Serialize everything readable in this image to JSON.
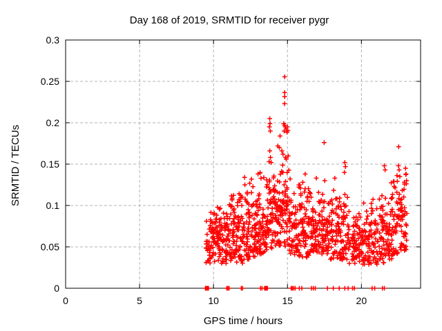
{
  "window": {
    "background": "#ffffff"
  },
  "chart_data": {
    "type": "scatter",
    "title": "Day 168 of 2019, SRMTID for receiver pygr",
    "xlabel": "GPS time / hours",
    "ylabel": "SRMTID / TECUs",
    "xlim": [
      0,
      24
    ],
    "ylim": [
      0,
      0.3
    ],
    "xticks": [
      0,
      5,
      10,
      15,
      20
    ],
    "xtick_labels": [
      "0",
      "5",
      "10",
      "15",
      "20"
    ],
    "yticks": [
      0,
      0.05,
      0.1,
      0.15,
      0.2,
      0.25,
      0.3
    ],
    "ytick_labels": [
      "0",
      "0.05",
      "0.1",
      "0.15",
      "0.2",
      "0.25",
      "0.3"
    ],
    "grid": true,
    "grid_style": "dashed",
    "legend": "none",
    "marker": "plus",
    "marker_color": "#ff0000",
    "grid_color": "#b0b0b0",
    "frame_color": "#000000",
    "series_name": "SRMTID",
    "seed": 7,
    "notable_points": [
      [
        14.81,
        0.2555
      ],
      [
        14.81,
        0.2365
      ],
      [
        14.81,
        0.2315
      ],
      [
        14.8,
        0.223
      ],
      [
        14.75,
        0.199
      ],
      [
        14.8,
        0.197
      ],
      [
        14.85,
        0.195
      ],
      [
        14.9,
        0.1925
      ],
      [
        14.78,
        0.19
      ],
      [
        14.97,
        0.1885
      ],
      [
        15.03,
        0.1905
      ],
      [
        15.0,
        0.195
      ],
      [
        14.5,
        0.184
      ],
      [
        14.35,
        0.172
      ],
      [
        14.45,
        0.17
      ],
      [
        14.62,
        0.166
      ],
      [
        14.7,
        0.162
      ],
      [
        14.86,
        0.158
      ],
      [
        14.92,
        0.156
      ],
      [
        15.05,
        0.16
      ],
      [
        13.78,
        0.195
      ],
      [
        13.8,
        0.205
      ],
      [
        13.82,
        0.199
      ],
      [
        13.84,
        0.19
      ],
      [
        13.8,
        0.166
      ],
      [
        13.85,
        0.158
      ],
      [
        13.76,
        0.153
      ],
      [
        13.9,
        0.152
      ],
      [
        12.1,
        0.134
      ],
      [
        12.12,
        0.125
      ],
      [
        16.2,
        0.138
      ],
      [
        16.95,
        0.133
      ],
      [
        17.48,
        0.176
      ],
      [
        17.52,
        0.13
      ],
      [
        18.2,
        0.133
      ],
      [
        18.88,
        0.152
      ],
      [
        18.92,
        0.147
      ],
      [
        18.85,
        0.14
      ],
      [
        21.55,
        0.148
      ],
      [
        21.6,
        0.143
      ],
      [
        22.52,
        0.171
      ],
      [
        22.5,
        0.148
      ],
      [
        22.55,
        0.143
      ],
      [
        22.6,
        0.135
      ],
      [
        22.98,
        0.145
      ],
      [
        23.02,
        0.138
      ],
      [
        23.05,
        0.13
      ],
      [
        22.9,
        0.128
      ]
    ],
    "zero_marks_x": [
      9.45,
      9.48,
      9.52,
      9.55,
      9.58,
      9.62,
      9.66,
      10.9,
      10.97,
      11.05,
      11.88,
      11.96,
      13.18,
      13.28,
      13.45,
      13.5,
      13.54,
      13.58,
      13.65,
      15.25,
      15.33,
      15.42,
      15.52,
      15.8,
      15.97,
      16.62,
      16.75,
      16.88,
      17.7,
      18.1,
      18.5,
      18.88,
      19.1,
      19.4,
      19.52,
      20.72,
      20.9,
      21.42,
      21.55
    ],
    "density_strips": [
      {
        "x0": 9.5,
        "x1": 10.0,
        "n": 46,
        "ymin": 0.03,
        "ymax": 0.098,
        "peak": 0.055
      },
      {
        "x0": 10.0,
        "x1": 10.5,
        "n": 52,
        "ymin": 0.03,
        "ymax": 0.105,
        "peak": 0.06
      },
      {
        "x0": 10.5,
        "x1": 11.0,
        "n": 52,
        "ymin": 0.03,
        "ymax": 0.11,
        "peak": 0.06
      },
      {
        "x0": 11.0,
        "x1": 11.5,
        "n": 52,
        "ymin": 0.032,
        "ymax": 0.115,
        "peak": 0.063
      },
      {
        "x0": 11.5,
        "x1": 12.0,
        "n": 52,
        "ymin": 0.03,
        "ymax": 0.125,
        "peak": 0.065
      },
      {
        "x0": 12.0,
        "x1": 12.5,
        "n": 52,
        "ymin": 0.035,
        "ymax": 0.132,
        "peak": 0.068
      },
      {
        "x0": 12.5,
        "x1": 13.0,
        "n": 52,
        "ymin": 0.038,
        "ymax": 0.14,
        "peak": 0.072
      },
      {
        "x0": 13.0,
        "x1": 13.5,
        "n": 52,
        "ymin": 0.04,
        "ymax": 0.152,
        "peak": 0.078
      },
      {
        "x0": 13.5,
        "x1": 14.0,
        "n": 55,
        "ymin": 0.045,
        "ymax": 0.15,
        "peak": 0.085
      },
      {
        "x0": 14.0,
        "x1": 14.5,
        "n": 55,
        "ymin": 0.05,
        "ymax": 0.158,
        "peak": 0.09
      },
      {
        "x0": 14.5,
        "x1": 15.1,
        "n": 62,
        "ymin": 0.05,
        "ymax": 0.15,
        "peak": 0.098
      },
      {
        "x0": 15.1,
        "x1": 15.6,
        "n": 46,
        "ymin": 0.04,
        "ymax": 0.15,
        "peak": 0.08
      },
      {
        "x0": 15.6,
        "x1": 16.1,
        "n": 46,
        "ymin": 0.035,
        "ymax": 0.14,
        "peak": 0.072
      },
      {
        "x0": 16.1,
        "x1": 16.6,
        "n": 46,
        "ymin": 0.035,
        "ymax": 0.132,
        "peak": 0.07
      },
      {
        "x0": 16.6,
        "x1": 17.1,
        "n": 46,
        "ymin": 0.038,
        "ymax": 0.128,
        "peak": 0.07
      },
      {
        "x0": 17.1,
        "x1": 17.6,
        "n": 46,
        "ymin": 0.04,
        "ymax": 0.135,
        "peak": 0.074
      },
      {
        "x0": 17.6,
        "x1": 18.1,
        "n": 46,
        "ymin": 0.035,
        "ymax": 0.13,
        "peak": 0.07
      },
      {
        "x0": 18.1,
        "x1": 18.6,
        "n": 44,
        "ymin": 0.035,
        "ymax": 0.132,
        "peak": 0.07
      },
      {
        "x0": 18.6,
        "x1": 19.1,
        "n": 42,
        "ymin": 0.033,
        "ymax": 0.128,
        "peak": 0.066
      },
      {
        "x0": 19.1,
        "x1": 19.6,
        "n": 40,
        "ymin": 0.03,
        "ymax": 0.1,
        "peak": 0.058
      },
      {
        "x0": 19.6,
        "x1": 20.1,
        "n": 40,
        "ymin": 0.03,
        "ymax": 0.105,
        "peak": 0.058
      },
      {
        "x0": 20.1,
        "x1": 20.6,
        "n": 42,
        "ymin": 0.028,
        "ymax": 0.108,
        "peak": 0.058
      },
      {
        "x0": 20.6,
        "x1": 21.1,
        "n": 42,
        "ymin": 0.026,
        "ymax": 0.112,
        "peak": 0.06
      },
      {
        "x0": 21.1,
        "x1": 21.6,
        "n": 44,
        "ymin": 0.03,
        "ymax": 0.125,
        "peak": 0.064
      },
      {
        "x0": 21.6,
        "x1": 22.1,
        "n": 46,
        "ymin": 0.035,
        "ymax": 0.132,
        "peak": 0.07
      },
      {
        "x0": 22.1,
        "x1": 22.6,
        "n": 46,
        "ymin": 0.04,
        "ymax": 0.145,
        "peak": 0.078
      },
      {
        "x0": 22.6,
        "x1": 23.1,
        "n": 46,
        "ymin": 0.045,
        "ymax": 0.15,
        "peak": 0.082
      }
    ]
  }
}
